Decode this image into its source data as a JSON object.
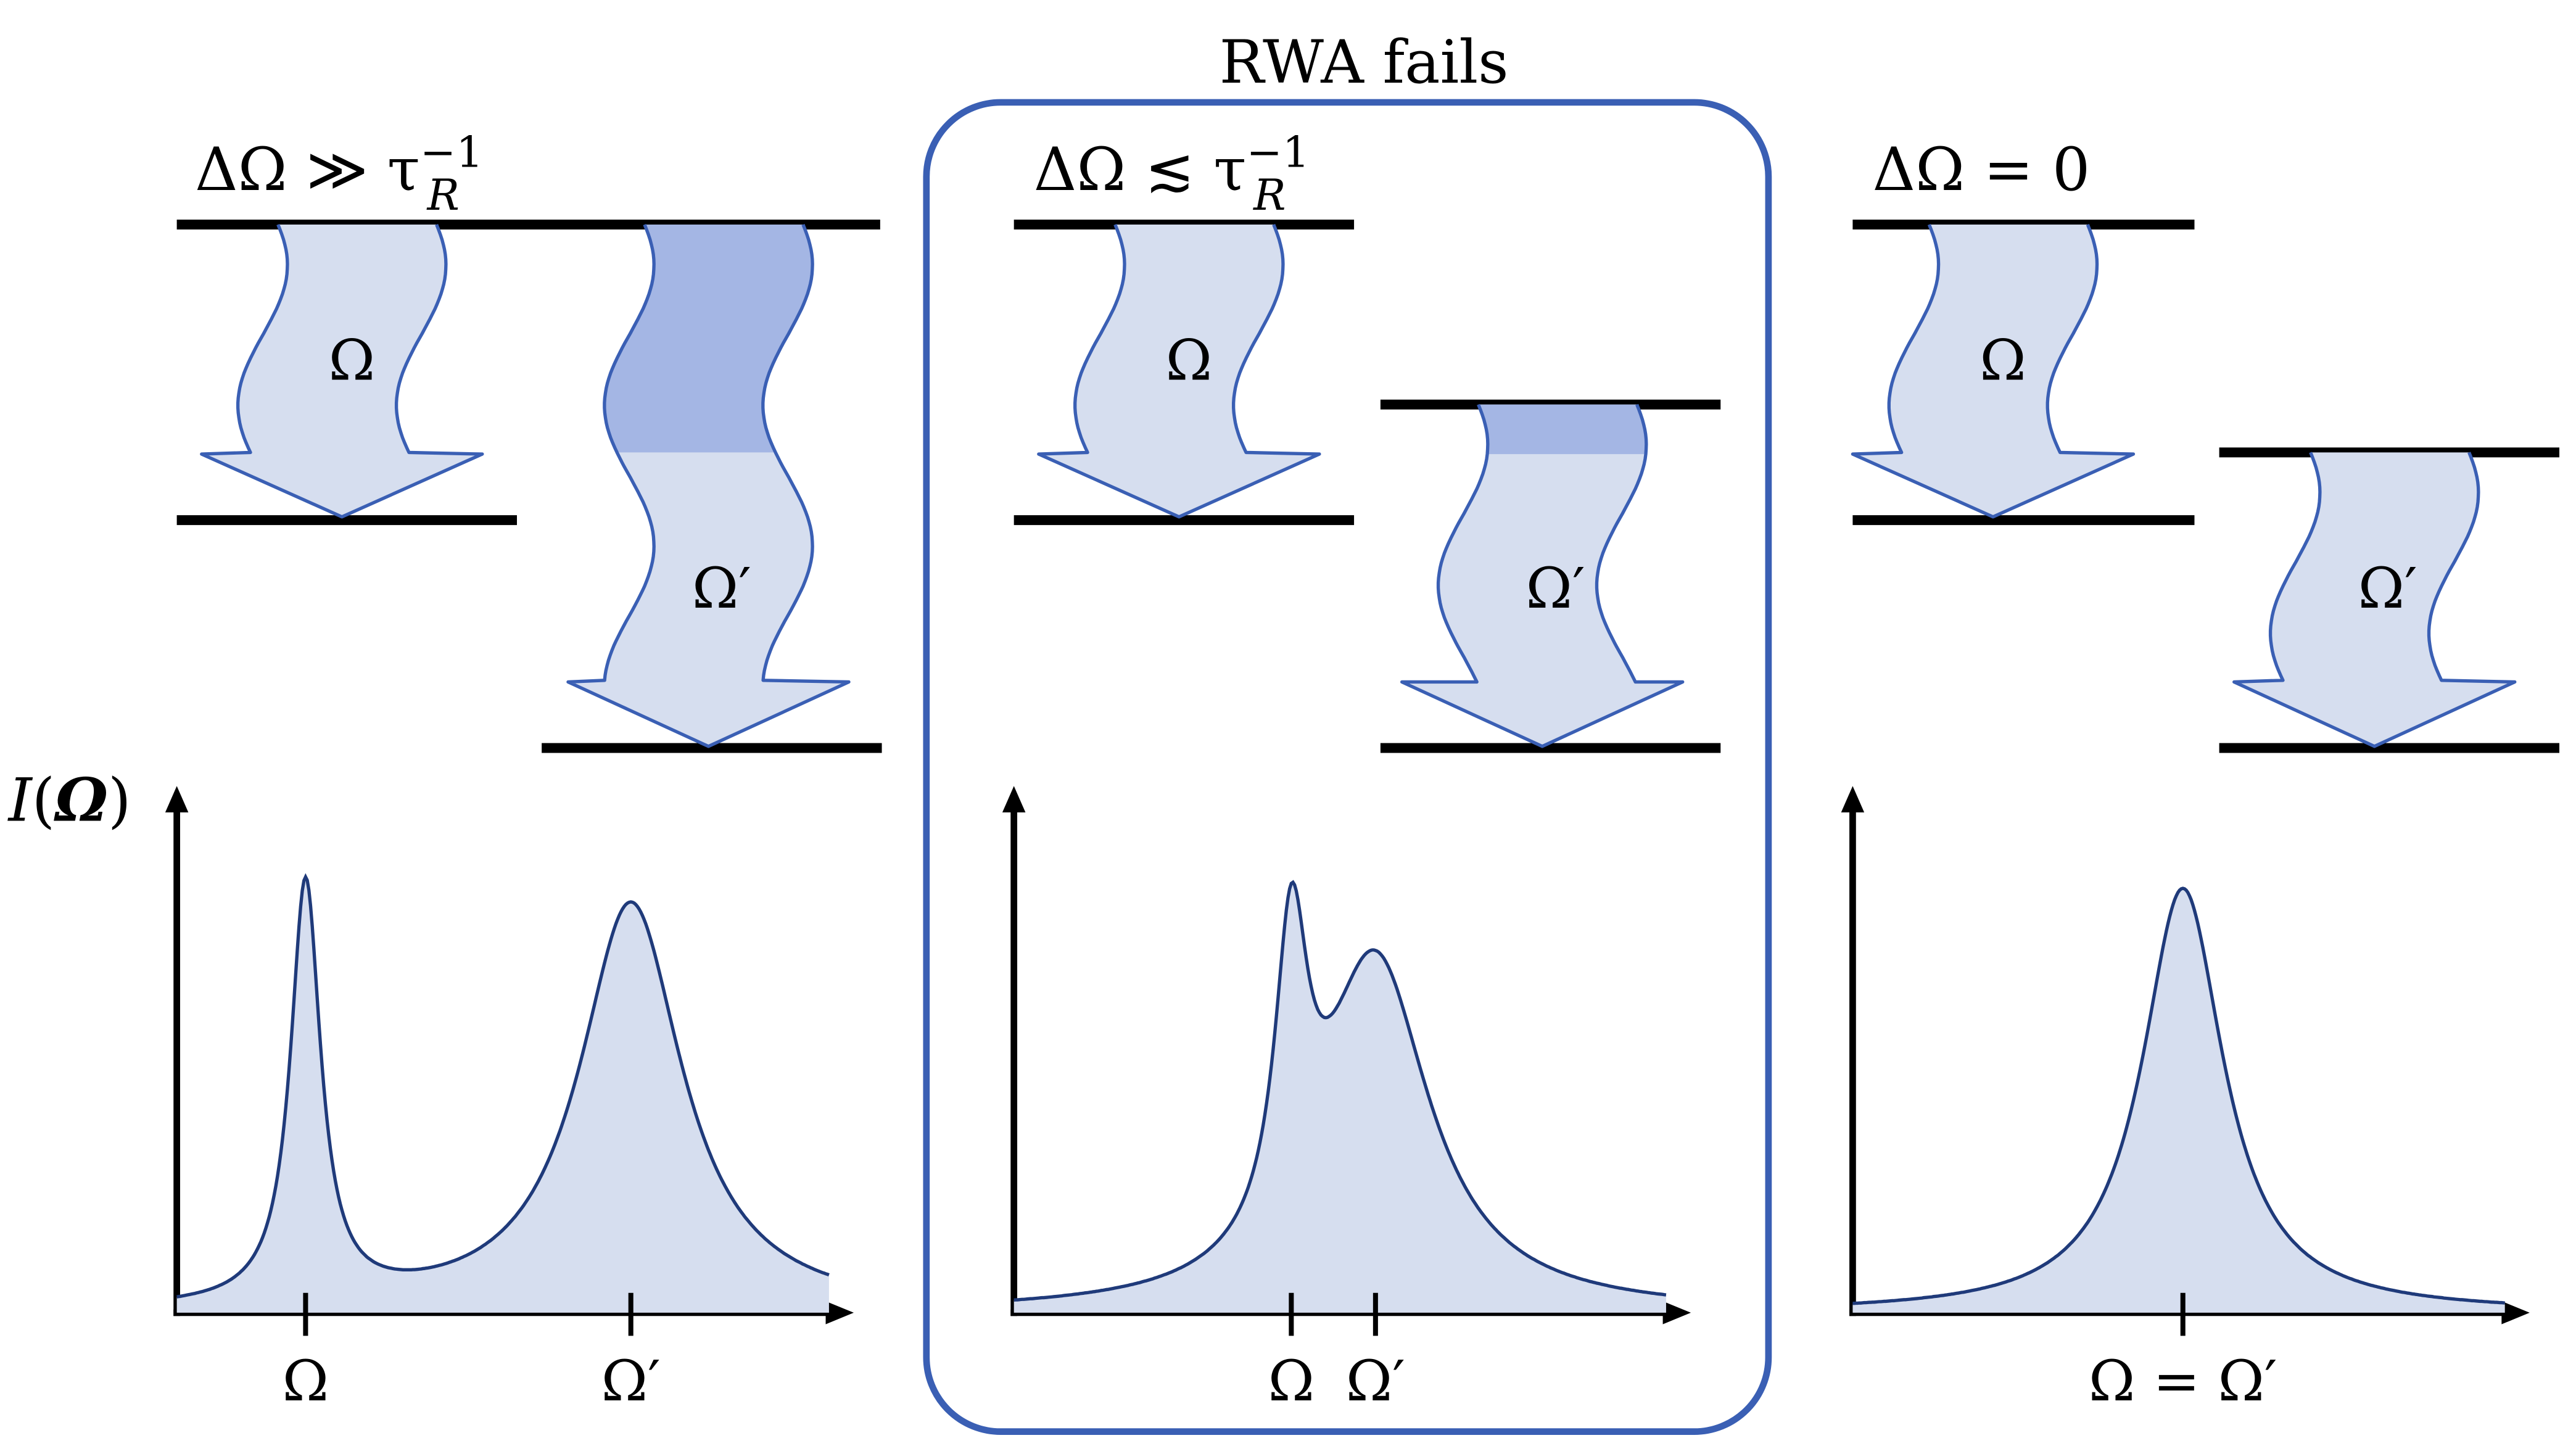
{
  "header": {
    "title": "RWA fails"
  },
  "y_axis_label": {
    "func": "I",
    "open": "(",
    "arg": "Ω",
    "close": ")"
  },
  "panels": [
    {
      "condition": {
        "text": "ΔΩ ≫ τ",
        "sub": "R",
        "sup": "−1"
      },
      "transitions": [
        "Ω",
        "Ω′"
      ],
      "x_labels": [
        "Ω",
        "Ω′"
      ]
    },
    {
      "condition": {
        "text": "ΔΩ ≲ τ",
        "sub": "R",
        "sup": "−1"
      },
      "transitions": [
        "Ω",
        "Ω′"
      ],
      "x_labels": [
        "Ω",
        "Ω′"
      ]
    },
    {
      "condition": {
        "text": "ΔΩ = 0"
      },
      "transitions": [
        "Ω",
        "Ω′"
      ],
      "x_labels": [
        "Ω = Ω′"
      ]
    }
  ]
}
